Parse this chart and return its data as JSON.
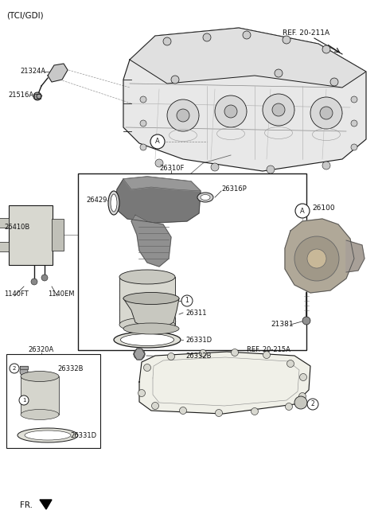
{
  "bg_color": "#ffffff",
  "line_color": "#1a1a1a",
  "gray_light": "#c8c8c8",
  "gray_mid": "#a0a0a0",
  "gray_dark": "#707070",
  "labels": {
    "TCI_GDI": "(TCI/GDI)",
    "REF_20_211A": "REF. 20-211A",
    "21324A": "21324A",
    "21516A": "21516A",
    "26310F": "26310F",
    "26316P": "26316P",
    "26429": "26429",
    "26410B": "26410B",
    "1140FT": "1140FT",
    "1140EM": "1140EM",
    "26331D": "26331D",
    "26311": "26311",
    "26332B": "26332B",
    "26100": "26100",
    "21381": "21381",
    "26320A": "26320A",
    "REF_20_215A": "REF. 20-215A",
    "FR": "FR."
  }
}
